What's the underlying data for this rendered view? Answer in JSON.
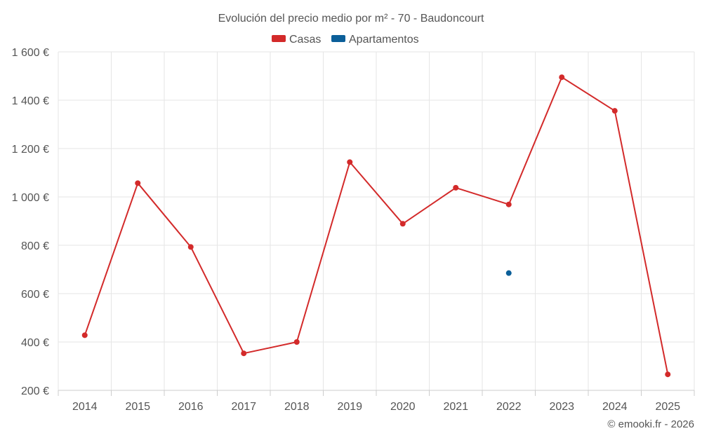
{
  "chart_data": {
    "type": "line",
    "title": "Evolución del precio medio por m² - 70 - Baudoncourt",
    "xlabel": "",
    "ylabel": "",
    "categories": [
      "2014",
      "2015",
      "2016",
      "2017",
      "2018",
      "2019",
      "2020",
      "2021",
      "2022",
      "2023",
      "2024",
      "2025"
    ],
    "series": [
      {
        "name": "Casas",
        "color": "#d32a2a",
        "values": [
          428,
          1057,
          793,
          353,
          400,
          1144,
          889,
          1038,
          969,
          1495,
          1356,
          266
        ]
      },
      {
        "name": "Apartamentos",
        "color": "#0b5f99",
        "values": [
          null,
          null,
          null,
          null,
          null,
          null,
          null,
          null,
          685,
          null,
          null,
          null
        ]
      }
    ],
    "ylim": [
      200,
      1600
    ],
    "yticks": [
      "200 €",
      "400 €",
      "600 €",
      "800 €",
      "1 000 €",
      "1 200 €",
      "1 400 €",
      "1 600 €"
    ],
    "ytick_values": [
      200,
      400,
      600,
      800,
      1000,
      1200,
      1400,
      1600
    ],
    "grid": true,
    "legend_position": "top-center"
  },
  "credit": "© emooki.fr - 2026"
}
